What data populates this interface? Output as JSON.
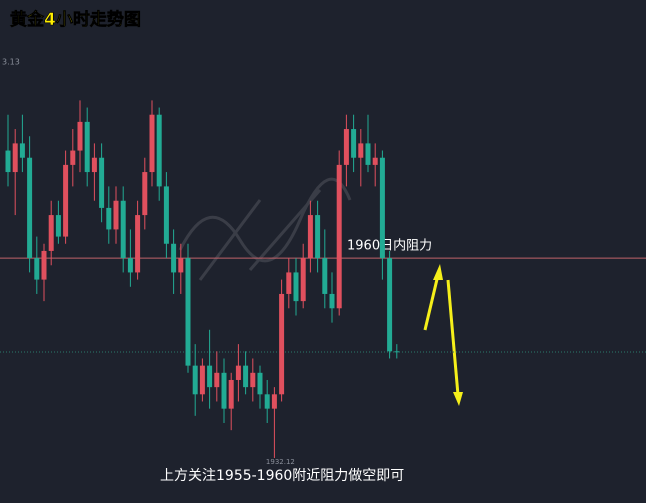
{
  "chart_data": {
    "type": "candlestick",
    "title": "黄金4小时走势图",
    "top_label": "3.13",
    "low_label": "1932.12",
    "resistance_label": "1960日内阻力",
    "note": "上方关注1955-1960附近阻力做空即可",
    "ylim": [
      1925.84,
      1996
    ],
    "resistance": 1960,
    "current": 1946.9,
    "up_color": "#e0505e",
    "down_color": "#22ab94",
    "open": [
      1975,
      1972,
      1976,
      1974,
      1960,
      1957,
      1961,
      1966,
      1963,
      1973,
      1975,
      1979,
      1972,
      1974,
      1967,
      1964,
      1968,
      1960,
      1958,
      1966,
      1972,
      1980,
      1970,
      1962,
      1958,
      1960,
      1945,
      1941,
      1945,
      1942,
      1944,
      1939,
      1943,
      1945,
      1942,
      1944,
      1941,
      1939,
      1941,
      1955,
      1958,
      1954,
      1960,
      1966,
      1960,
      1955,
      1953,
      1973,
      1978,
      1974,
      1976,
      1973,
      1974,
      1960,
      1947
    ],
    "high": [
      1980,
      1978,
      1980,
      1977,
      1963,
      1962,
      1968,
      1968,
      1975,
      1978,
      1982,
      1981,
      1976,
      1976,
      1970,
      1970,
      1970,
      1964,
      1968,
      1974,
      1982,
      1981,
      1972,
      1964,
      1962,
      1962,
      1948,
      1946,
      1950,
      1947,
      1946,
      1944,
      1948,
      1947,
      1946,
      1945,
      1943,
      1942,
      1957,
      1960,
      1960,
      1962,
      1968,
      1968,
      1964,
      1958,
      1975,
      1980,
      1980,
      1978,
      1980,
      1976,
      1975,
      1961,
      1948
    ],
    "low": [
      1970,
      1966,
      1972,
      1958,
      1955,
      1954,
      1959,
      1962,
      1962,
      1970,
      1972,
      1970,
      1968,
      1965,
      1962,
      1962,
      1958,
      1956,
      1957,
      1964,
      1970,
      1968,
      1960,
      1955,
      1955,
      1944,
      1938,
      1940,
      1939,
      1940,
      1937,
      1936,
      1940,
      1941,
      1940,
      1939,
      1937,
      1932.12,
      1940,
      1953,
      1952,
      1953,
      1958,
      1958,
      1953,
      1951,
      1952,
      1970,
      1972,
      1970,
      1972,
      1970,
      1957,
      1946,
      1946
    ],
    "close": [
      1972,
      1976,
      1974,
      1960,
      1957,
      1961,
      1966,
      1963,
      1973,
      1975,
      1979,
      1972,
      1974,
      1967,
      1964,
      1968,
      1960,
      1958,
      1966,
      1972,
      1980,
      1970,
      1962,
      1958,
      1960,
      1945,
      1941,
      1945,
      1942,
      1944,
      1939,
      1943,
      1945,
      1942,
      1944,
      1941,
      1939,
      1941,
      1955,
      1958,
      1954,
      1960,
      1966,
      1960,
      1955,
      1953,
      1973,
      1978,
      1974,
      1976,
      1973,
      1974,
      1960,
      1947,
      1946.9
    ]
  }
}
